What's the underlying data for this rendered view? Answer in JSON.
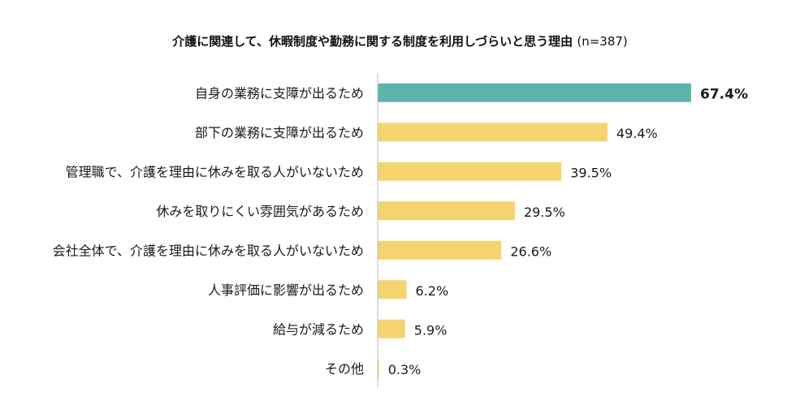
{
  "chart_data": {
    "type": "bar",
    "orientation": "horizontal",
    "title": "介護に関連して、休暇制度や勤務に関する制度を利用しづらいと思う理由",
    "subtitle": "(n=387)",
    "categories": [
      "自身の業務に支障が出るため",
      "部下の業務に支障が出るため",
      "管理職で、介護を理由に休みを取る人がいないため",
      "休みを取りにくい雰囲気があるため",
      "会社全体で、介護を理由に休みを取る人がいないため",
      "人事評価に影響が出るため",
      "給与が減るため",
      "その他"
    ],
    "values": [
      67.4,
      49.4,
      39.5,
      29.5,
      26.6,
      6.2,
      5.9,
      0.3
    ],
    "value_labels": [
      "67.4%",
      "49.4%",
      "39.5%",
      "29.5%",
      "26.6%",
      "6.2%",
      "5.9%",
      "0.3%"
    ],
    "xlim": [
      0,
      67.4
    ],
    "highlight_index": 0,
    "colors": {
      "highlight": "#5bb5ac",
      "default": "#f5d470",
      "axis": "#bfbfbf"
    },
    "grid": false,
    "legend": "none"
  }
}
